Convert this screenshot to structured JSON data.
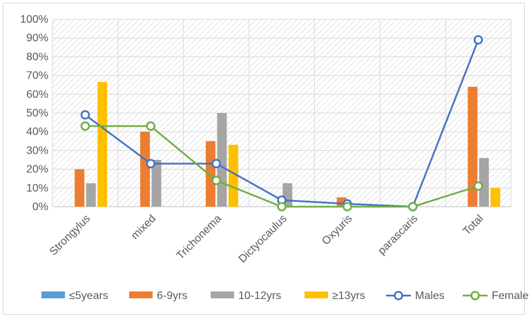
{
  "chart_data": {
    "type": "bar",
    "categories": [
      "Strongylus",
      "mixed",
      "Trichonema",
      "Dictyocaulus",
      "Oxyuris",
      "parascaris",
      "Total"
    ],
    "y_ticks": [
      "0%",
      "10%",
      "20%",
      "30%",
      "40%",
      "50%",
      "60%",
      "70%",
      "80%",
      "90%",
      "100%"
    ],
    "ylim": [
      0,
      100
    ],
    "y_unit": "%",
    "grid": true,
    "legend_position": "bottom",
    "bar_series": [
      {
        "name": "≤5years",
        "color": "#5b9bd5",
        "values": [
          0,
          0,
          0,
          0,
          0,
          0,
          0
        ]
      },
      {
        "name": "6-9yrs",
        "color": "#ed7d31",
        "values": [
          20,
          40,
          35,
          0,
          5,
          0,
          64
        ]
      },
      {
        "name": "10-12yrs",
        "color": "#a5a5a5",
        "values": [
          12.5,
          25,
          50,
          12.5,
          0,
          0,
          26
        ]
      },
      {
        "name": "≥13yrs",
        "color": "#ffc000",
        "values": [
          66.5,
          0,
          33,
          0,
          0,
          0,
          10
        ]
      }
    ],
    "line_series": [
      {
        "name": "Males",
        "color": "#4472c4",
        "values": [
          49,
          23,
          23,
          3.5,
          1.5,
          0,
          89
        ]
      },
      {
        "name": "Females",
        "color": "#70ad47",
        "values": [
          43,
          43,
          14,
          0,
          0,
          0,
          11
        ]
      }
    ]
  }
}
